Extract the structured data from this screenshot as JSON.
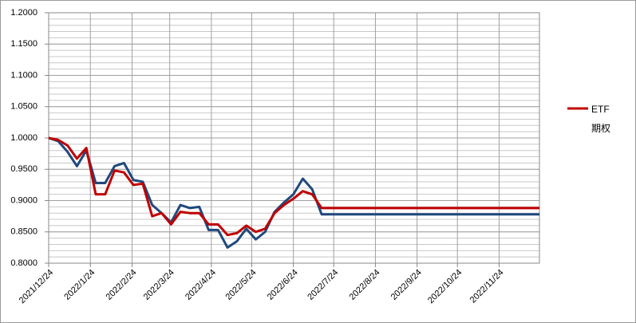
{
  "chart_data": {
    "type": "line",
    "x": [
      "2021/12/24",
      "2021/12/31",
      "2022/1/7",
      "2022/1/14",
      "2022/1/21",
      "2022/1/28",
      "2022/2/4",
      "2022/2/11",
      "2022/2/18",
      "2022/2/25",
      "2022/3/4",
      "2022/3/11",
      "2022/3/18",
      "2022/3/25",
      "2022/4/1",
      "2022/4/8",
      "2022/4/15",
      "2022/4/22",
      "2022/4/29",
      "2022/5/6",
      "2022/5/13",
      "2022/5/20",
      "2022/5/27",
      "2022/6/3",
      "2022/6/10",
      "2022/6/17",
      "2022/6/24",
      "2022/7/1",
      "2022/7/8",
      "2022/7/15",
      "2022/12/24"
    ],
    "series": [
      {
        "name": "ETF期权",
        "color": "#c00000",
        "values": [
          1.0,
          0.997,
          0.988,
          0.967,
          0.984,
          0.91,
          0.91,
          0.948,
          0.945,
          0.925,
          0.927,
          0.875,
          0.88,
          0.862,
          0.882,
          0.88,
          0.88,
          0.862,
          0.862,
          0.845,
          0.848,
          0.86,
          0.85,
          0.855,
          0.88,
          0.893,
          0.903,
          0.915,
          0.91,
          0.888,
          0.888
        ]
      },
      {
        "color": "#1f497d",
        "values": [
          1.0,
          0.995,
          0.978,
          0.955,
          0.98,
          0.928,
          0.928,
          0.955,
          0.96,
          0.933,
          0.93,
          0.893,
          0.88,
          0.865,
          0.893,
          0.888,
          0.89,
          0.853,
          0.853,
          0.825,
          0.835,
          0.855,
          0.838,
          0.85,
          0.882,
          0.897,
          0.91,
          0.935,
          0.918,
          0.878,
          0.878
        ]
      }
    ],
    "xlim": [
      "2021/12/24",
      "2022/12/24"
    ],
    "xticks": [
      "2021/12/24",
      "2022/1/24",
      "2022/2/24",
      "2022/3/24",
      "2022/4/24",
      "2022/5/24",
      "2022/6/24",
      "2022/7/24",
      "2022/8/24",
      "2022/9/24",
      "2022/10/24",
      "2022/11/24"
    ],
    "ylim": [
      0.8,
      1.2
    ],
    "yticks": [
      {
        "value": 0.8,
        "label": "0.8000"
      },
      {
        "value": 0.85,
        "label": "0.8500"
      },
      {
        "value": 0.9,
        "label": "0.9000"
      },
      {
        "value": 0.95,
        "label": "0.9500"
      },
      {
        "value": 1.0,
        "label": "1.0000"
      },
      {
        "value": 1.05,
        "label": "1.0500"
      },
      {
        "value": 1.1,
        "label": "1.1000"
      },
      {
        "value": 1.15,
        "label": "1.1500"
      },
      {
        "value": 1.2,
        "label": "1.2000"
      }
    ],
    "grid": true,
    "ygrid_minor": 0.01,
    "legend": "right"
  }
}
